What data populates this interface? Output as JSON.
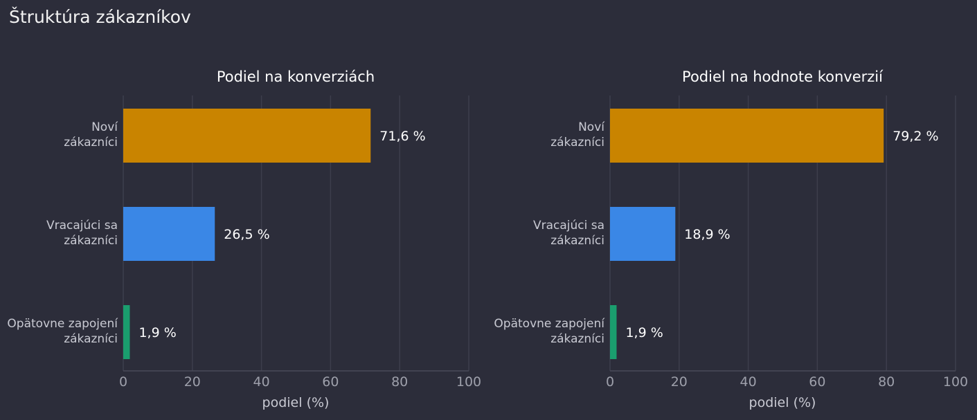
{
  "page": {
    "title": "Štruktúra zákazníkov"
  },
  "chart_data": [
    {
      "type": "bar",
      "orientation": "horizontal",
      "title": "Podiel na konverziách",
      "xlabel": "podiel (%)",
      "ylabel": "",
      "xlim": [
        0,
        100
      ],
      "xticks": [
        0,
        20,
        40,
        60,
        80,
        100
      ],
      "grid": true,
      "categories": [
        [
          "Noví",
          "zákazníci"
        ],
        [
          "Vracajúci sa",
          "zákazníci"
        ],
        [
          "Opätovne zapojení",
          "zákazníci"
        ]
      ],
      "values": [
        71.6,
        26.5,
        1.9
      ],
      "value_labels": [
        "71,6 %",
        "26,5 %",
        "1,9 %"
      ],
      "colors": [
        "#c98400",
        "#3a87e6",
        "#1a9e6e"
      ]
    },
    {
      "type": "bar",
      "orientation": "horizontal",
      "title": "Podiel na hodnote konverzií",
      "xlabel": "podiel (%)",
      "ylabel": "",
      "xlim": [
        0,
        100
      ],
      "xticks": [
        0,
        20,
        40,
        60,
        80,
        100
      ],
      "grid": true,
      "categories": [
        [
          "Noví",
          "zákazníci"
        ],
        [
          "Vracajúci sa",
          "zákazníci"
        ],
        [
          "Opätovne zapojení",
          "zákazníci"
        ]
      ],
      "values": [
        79.2,
        18.9,
        1.9
      ],
      "value_labels": [
        "79,2 %",
        "18,9 %",
        "1,9 %"
      ],
      "colors": [
        "#c98400",
        "#3a87e6",
        "#1a9e6e"
      ]
    }
  ]
}
